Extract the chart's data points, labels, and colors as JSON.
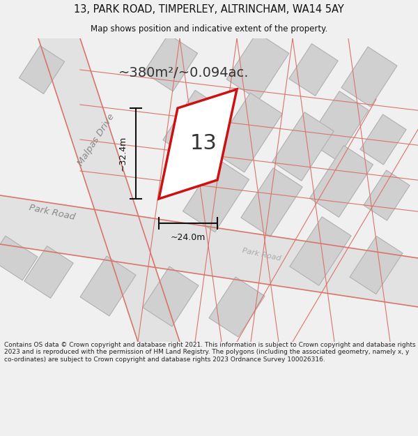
{
  "title": "13, PARK ROAD, TIMPERLEY, ALTRINCHAM, WA14 5AY",
  "subtitle": "Map shows position and indicative extent of the property.",
  "area_text": "~380m²/~0.094ac.",
  "property_number": "13",
  "dim_width": "~24.0m",
  "dim_height": "~32.4m",
  "footer": "Contains OS data © Crown copyright and database right 2021. This information is subject to Crown copyright and database rights 2023 and is reproduced with the permission of HM Land Registry. The polygons (including the associated geometry, namely x, y co-ordinates) are subject to Crown copyright and database rights 2023 Ordnance Survey 100026316.",
  "bg_color": "#f0f0f0",
  "map_bg": "#f8f8f8",
  "road_fill": "#e2e2e2",
  "building_fill": "#d0d0d0",
  "building_stroke": "#b0b0b0",
  "red_road": "#d9756a",
  "property_color": "#cc1111",
  "dim_color": "#111111",
  "text_color": "#333333",
  "road_label_color": "#888888",
  "title_color": "#111111",
  "footer_color": "#222222"
}
